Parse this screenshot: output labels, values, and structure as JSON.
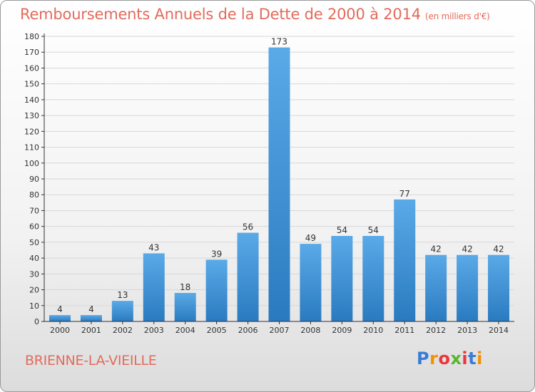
{
  "header": {
    "title": "Remboursements Annuels de la Dette de 2000 à 2014",
    "unit": "(en milliers d'€)"
  },
  "footer": {
    "town": "BRIENNE-LA-VIEILLE",
    "logo": "Proxiti",
    "logo_colors": [
      "#3a7bd5",
      "#f39200",
      "#e8383d",
      "#5bb531",
      "#e8383d",
      "#3a7bd5",
      "#f39200"
    ]
  },
  "colors": {
    "bar_light": "#5aaae8",
    "bar_dark": "#2a7ac0",
    "axis": "#333333",
    "grid": "#d8d8d8",
    "title": "#e26b5b"
  },
  "chart_data": {
    "type": "bar",
    "title": "Remboursements Annuels de la Dette de 2000 à 2014",
    "subtitle": "(en milliers d'€)",
    "categories": [
      "2000",
      "2001",
      "2002",
      "2003",
      "2004",
      "2005",
      "2006",
      "2007",
      "2008",
      "2009",
      "2010",
      "2011",
      "2012",
      "2013",
      "2014"
    ],
    "values": [
      4,
      4,
      13,
      43,
      18,
      39,
      56,
      173,
      49,
      54,
      54,
      77,
      42,
      42,
      42
    ],
    "ylim": [
      0,
      180
    ],
    "ytick_step": 10,
    "grid": true,
    "data_labels": true,
    "xlabel": "",
    "ylabel": ""
  }
}
